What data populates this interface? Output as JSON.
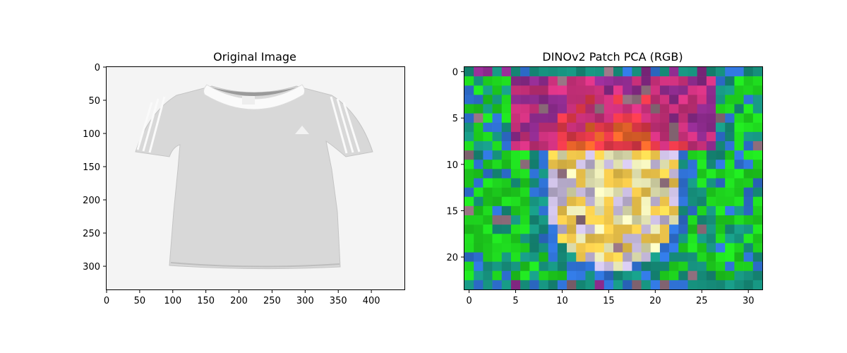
{
  "chart_data": [
    {
      "type": "image",
      "title": "Original Image",
      "xlim": [
        0,
        450
      ],
      "ylim": [
        335,
        0
      ],
      "xticks": [
        0,
        50,
        100,
        150,
        200,
        250,
        300,
        350,
        400
      ],
      "yticks": [
        0,
        50,
        100,
        150,
        200,
        250,
        300
      ],
      "image_content": "grey short-sleeve t-shirt with white stripes on shoulders and white collar",
      "background_color": "#f4f4f4"
    },
    {
      "type": "heatmap",
      "title": "DINOv2 Patch PCA (RGB)",
      "grid_size": {
        "columns": 32,
        "rows": 24
      },
      "xlim": [
        -0.5,
        31.5
      ],
      "ylim": [
        23.5,
        -0.5
      ],
      "xticks": [
        0,
        5,
        10,
        15,
        20,
        25,
        30
      ],
      "yticks": [
        0,
        5,
        10,
        15,
        20
      ],
      "palette": {
        "green": "#1ed21e",
        "teal": "#168f7c",
        "blue": "#2e6fd0",
        "purple": "#8a2a8a",
        "magenta": "#c8307a",
        "red": "#e03848",
        "orange": "#e8642a",
        "yellow": "#f2c84c",
        "cream": "#e6e6b4",
        "lavender": "#c0b4d6",
        "grey": "#8a6a78"
      }
    }
  ]
}
